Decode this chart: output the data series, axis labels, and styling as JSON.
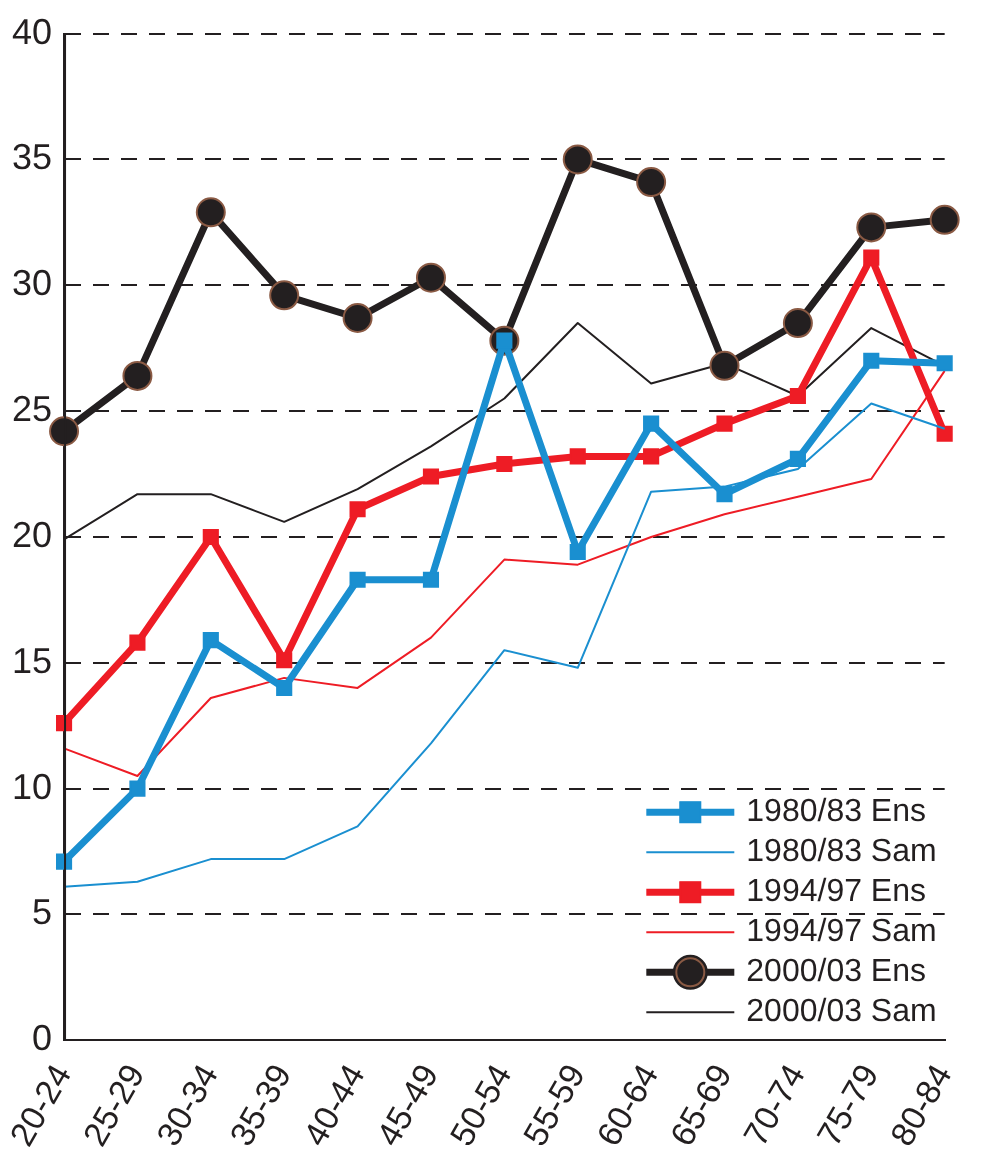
{
  "chart_data": {
    "type": "line",
    "categories": [
      "20-24",
      "25-29",
      "30-34",
      "35-39",
      "40-44",
      "45-49",
      "50-54",
      "55-59",
      "60-64",
      "65-69",
      "70-74",
      "75-79",
      "80-84"
    ],
    "ylim": [
      0,
      40
    ],
    "yticks": [
      0,
      5,
      10,
      15,
      20,
      25,
      30,
      35,
      40
    ],
    "grid": "y",
    "legend": "bottom right",
    "series": [
      {
        "name": "1980/83 Ens",
        "color": "#1a8fd0",
        "marker": "square",
        "values": [
          7.1,
          10,
          15.9,
          14,
          18.3,
          18.3,
          27.8,
          19.4,
          24.5,
          21.7,
          23.1,
          27,
          26.9
        ]
      },
      {
        "name": "1980/83 Sam",
        "color": "#1a8fd0",
        "marker": "none",
        "values": [
          6.1,
          6.3,
          7.2,
          7.2,
          8.5,
          11.8,
          15.5,
          14.8,
          21.8,
          22,
          22.7,
          25.3,
          24.3
        ]
      },
      {
        "name": "1994/97 Ens",
        "color": "#ee1c25",
        "marker": "square",
        "values": [
          12.6,
          15.8,
          20,
          15.1,
          21.1,
          22.4,
          22.9,
          23.2,
          23.2,
          24.5,
          25.6,
          31.1,
          24.1
        ]
      },
      {
        "name": "1994/97 Sam",
        "color": "#ee1c25",
        "marker": "none",
        "values": [
          11.6,
          10.5,
          13.6,
          14.4,
          14,
          16,
          19.1,
          18.9,
          20,
          20.9,
          21.6,
          22.3,
          26.6
        ]
      },
      {
        "name": "2000/03 Ens",
        "color": "#231f20",
        "marker": "circle",
        "values": [
          24.2,
          26.4,
          32.9,
          29.6,
          28.7,
          30.3,
          27.8,
          35,
          34.1,
          26.8,
          28.5,
          32.3,
          32.6
        ]
      },
      {
        "name": "2000/03 Sam",
        "color": "#231f20",
        "marker": "none",
        "values": [
          19.9,
          21.7,
          21.7,
          20.6,
          21.9,
          23.6,
          25.5,
          28.5,
          26.1,
          26.9,
          25.6,
          28.3,
          26.8
        ]
      }
    ]
  }
}
